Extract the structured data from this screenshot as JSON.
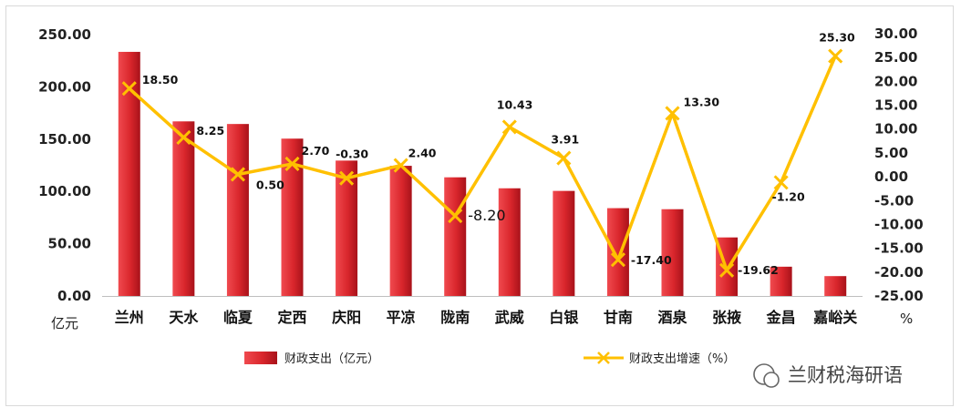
{
  "chart_data": {
    "type": "bar+line",
    "categories": [
      "兰州",
      "天水",
      "临夏",
      "定西",
      "庆阳",
      "平凉",
      "陇南",
      "武威",
      "白银",
      "甘南",
      "酒泉",
      "张掖",
      "金昌",
      "嘉峪关"
    ],
    "series": [
      {
        "name": "财政支出（亿元）",
        "type": "bar",
        "axis": "left",
        "values": [
          233.5,
          167,
          164.5,
          150.5,
          129.5,
          124.5,
          113.5,
          103,
          100.5,
          84,
          83,
          56,
          28,
          19
        ]
      },
      {
        "name": "财政支出增速（%）",
        "type": "line",
        "axis": "right",
        "values": [
          18.5,
          8.25,
          0.5,
          2.7,
          -0.3,
          2.4,
          -8.2,
          10.43,
          3.91,
          -17.4,
          13.3,
          -19.62,
          -1.2,
          25.3
        ],
        "labels": [
          "18.50",
          "8.25",
          "0.50",
          "2.70",
          "-0.30",
          "2.40",
          "-8.20",
          "10.43",
          "3.91",
          "-17.40",
          "13.30",
          "-19.62",
          "-1.20",
          "25.30"
        ]
      }
    ],
    "y_left": {
      "unit": "亿元",
      "range": [
        0,
        250
      ],
      "ticks": [
        "0.00",
        "50.00",
        "100.00",
        "150.00",
        "200.00",
        "250.00"
      ]
    },
    "y_right": {
      "unit": "%",
      "range": [
        -25,
        30
      ],
      "ticks": [
        "30.00",
        "25.00",
        "20.00",
        "15.00",
        "10.00",
        "5.00",
        "0.00",
        "-5.00",
        "-10.00",
        "-15.00",
        "-20.00",
        "-25.00"
      ]
    },
    "grid": false,
    "legend": "bottom",
    "colors": {
      "bar": "#d9262c",
      "line": "#ffc000",
      "negative_label": "#e00000",
      "positive_label": "#111111"
    }
  },
  "watermark": "兰财税海研语"
}
